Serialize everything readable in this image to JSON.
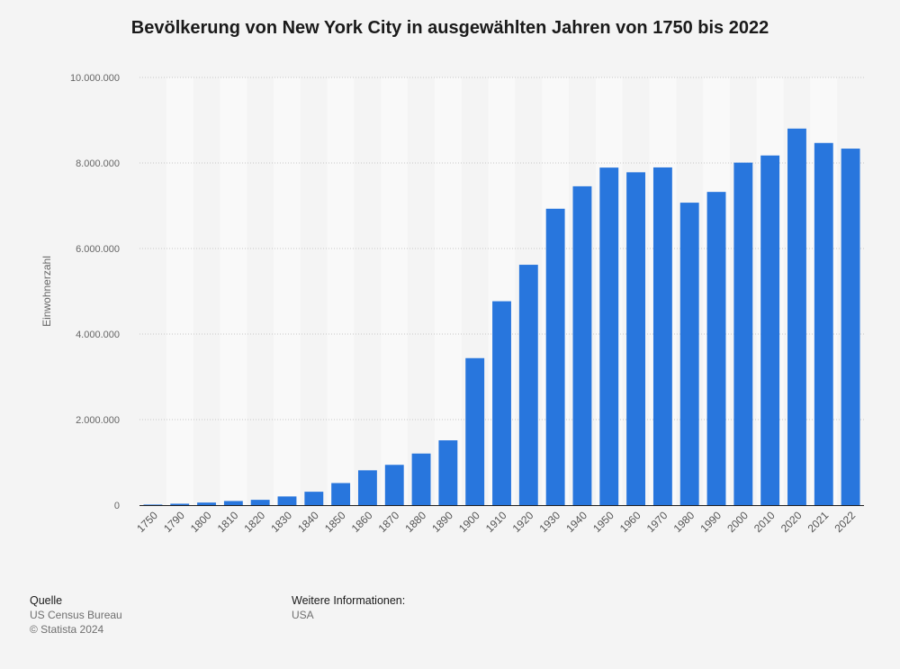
{
  "chart_data": {
    "type": "bar",
    "title": "Bevölkerung von New York City in ausgewählten Jahren von 1750 bis 2022",
    "xlabel": "",
    "ylabel": "Einwohnerzahl",
    "ylim": [
      0,
      10000000
    ],
    "yticks": [
      0,
      2000000,
      4000000,
      6000000,
      8000000,
      10000000
    ],
    "ytick_labels": [
      "0",
      "2.000.000",
      "4.000.000",
      "6.000.000",
      "8.000.000",
      "10.000.000"
    ],
    "grid": true,
    "categories": [
      "1750",
      "1790",
      "1800",
      "1810",
      "1820",
      "1830",
      "1840",
      "1850",
      "1860",
      "1870",
      "1880",
      "1890",
      "1900",
      "1910",
      "1920",
      "1930",
      "1940",
      "1950",
      "1960",
      "1970",
      "1980",
      "1990",
      "2000",
      "2010",
      "2020",
      "2021",
      "2022"
    ],
    "values": [
      13000,
      33000,
      60000,
      96000,
      124000,
      203000,
      313000,
      516000,
      814000,
      942000,
      1206000,
      1515000,
      3437000,
      4767000,
      5620000,
      6930000,
      7455000,
      7892000,
      7782000,
      7896000,
      7072000,
      7323000,
      8008000,
      8175000,
      8804000,
      8468000,
      8336000
    ]
  },
  "colors": {
    "bar": "#2876dd",
    "background": "#f4f4f4",
    "band": "#f9f9f9"
  },
  "footer": {
    "source_heading": "Quelle",
    "source_name": "US Census Bureau",
    "copyright": "© Statista 2024",
    "info_heading": "Weitere Informationen:",
    "info_value": "USA"
  }
}
